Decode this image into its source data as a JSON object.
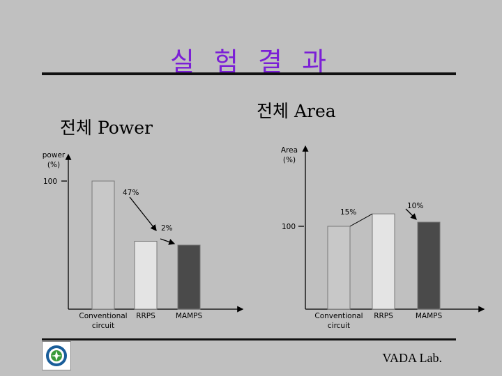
{
  "slide": {
    "title": "실 험 결 과",
    "footer": "VADA Lab."
  },
  "chart_data": [
    {
      "type": "bar",
      "subtitle": "전체 Power",
      "ylabel": "power (%)",
      "categories": [
        "Conventional circuit",
        "RRPS",
        "MAMPS"
      ],
      "values": [
        100,
        53,
        50
      ],
      "y_tick": "100",
      "annotations": [
        "47%",
        "2%"
      ],
      "colors": [
        "#c8c8c8",
        "#e4e4e4",
        "#4a4a4a"
      ]
    },
    {
      "type": "bar",
      "subtitle": "전체 Area",
      "ylabel": "Area (%)",
      "categories": [
        "Conventional circuit",
        "RRPS",
        "MAMPS"
      ],
      "values": [
        100,
        115,
        105
      ],
      "y_tick": "100",
      "annotations": [
        "15%",
        "10%"
      ],
      "colors": [
        "#c8c8c8",
        "#e4e4e4",
        "#4a4a4a"
      ]
    }
  ]
}
